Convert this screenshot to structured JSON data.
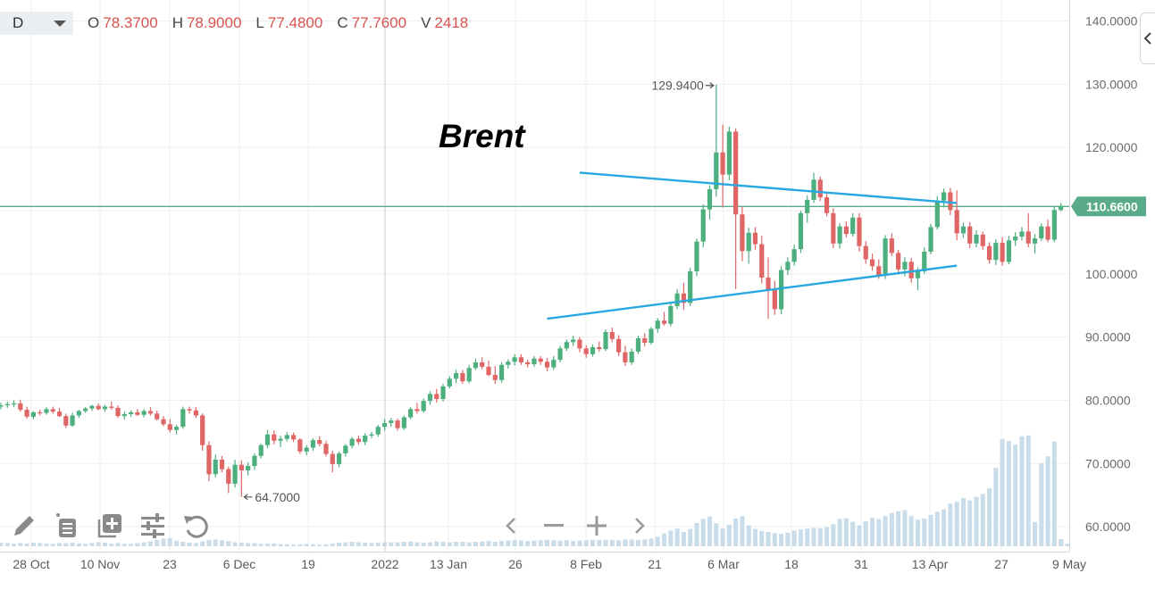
{
  "header": {
    "timeframe": "D",
    "ohlc": {
      "o_label": "O",
      "o": "78.3700",
      "h_label": "H",
      "h": "78.9000",
      "l_label": "L",
      "l": "77.4800",
      "c_label": "C",
      "c": "77.7600",
      "v_label": "V",
      "v": "2418"
    }
  },
  "colors": {
    "up": "#4caf7d",
    "down": "#e06666",
    "trendline": "#29a8e0",
    "hline": "#5aab8a",
    "price_label_bg": "#5aab8a",
    "volume": "#c9dcea",
    "grid": "#efefef"
  },
  "icons": [
    "pencil-icon",
    "list-icon",
    "add-indicator-icon",
    "settings-sliders-icon",
    "reset-icon",
    "chevron-left-icon",
    "minus-icon",
    "plus-icon",
    "chevron-right-icon",
    "collapse-chevron-icon"
  ],
  "chart_data": {
    "type": "candlestick",
    "title": "Brent",
    "y_ticks": [
      "140.0000",
      "130.0000",
      "120.0000",
      "110.0000",
      "100.0000",
      "90.0000",
      "80.0000",
      "70.0000",
      "60.0000"
    ],
    "ylim": [
      58.6,
      141.2
    ],
    "x_ticks": [
      "28 Oct",
      "10 Nov",
      "23",
      "6 Dec",
      "19",
      "2022",
      "13 Jan",
      "26",
      "8 Feb",
      "21",
      "6 Mar",
      "18",
      "31",
      "13 Apr",
      "27",
      "9 May"
    ],
    "current_price": "110.6600",
    "high_annotation": "129.9400",
    "low_annotation": "64.7000",
    "horizontal_line": 110.66,
    "trendlines": [
      {
        "from": [
          89,
          116.0
        ],
        "to": [
          147,
          111.2
        ]
      },
      {
        "from": [
          84,
          92.9
        ],
        "to": [
          147,
          101.3
        ]
      }
    ],
    "candles": [
      [
        79.0,
        79.6,
        78.6,
        79.2
      ],
      [
        79.2,
        79.8,
        78.8,
        79.4
      ],
      [
        79.4,
        80.0,
        78.9,
        79.5
      ],
      [
        79.5,
        80.1,
        78.2,
        78.5
      ],
      [
        78.5,
        79.0,
        77.1,
        77.4
      ],
      [
        77.4,
        78.3,
        77.0,
        78.1
      ],
      [
        78.1,
        78.5,
        77.6,
        78.0
      ],
      [
        78.0,
        78.9,
        77.7,
        78.6
      ],
      [
        78.6,
        79.0,
        77.9,
        78.2
      ],
      [
        78.2,
        78.8,
        77.3,
        77.5
      ],
      [
        77.5,
        77.9,
        75.6,
        76.0
      ],
      [
        76.0,
        78.0,
        75.8,
        77.6
      ],
      [
        77.6,
        78.5,
        77.2,
        78.3
      ],
      [
        78.3,
        78.9,
        78.0,
        78.7
      ],
      [
        78.7,
        79.3,
        78.3,
        79.1
      ],
      [
        79.1,
        79.5,
        78.4,
        78.6
      ],
      [
        78.6,
        79.3,
        78.2,
        79.0
      ],
      [
        79.0,
        79.8,
        78.5,
        78.8
      ],
      [
        78.8,
        79.2,
        77.2,
        77.5
      ],
      [
        77.5,
        78.2,
        77.0,
        77.8
      ],
      [
        77.8,
        78.4,
        77.4,
        78.1
      ],
      [
        78.1,
        78.6,
        77.5,
        77.7
      ],
      [
        77.7,
        78.6,
        77.3,
        78.3
      ],
      [
        78.3,
        78.9,
        77.6,
        77.9
      ],
      [
        77.9,
        78.4,
        76.8,
        77.0
      ],
      [
        77.0,
        77.5,
        75.9,
        76.2
      ],
      [
        76.2,
        77.0,
        74.9,
        75.3
      ],
      [
        75.3,
        76.1,
        74.6,
        75.8
      ],
      [
        75.8,
        79.0,
        75.5,
        78.6
      ],
      [
        78.6,
        79.0,
        77.9,
        78.4
      ],
      [
        78.4,
        78.9,
        77.2,
        77.6
      ],
      [
        77.6,
        77.9,
        72.0,
        72.9
      ],
      [
        72.9,
        73.5,
        67.2,
        68.3
      ],
      [
        68.3,
        71.4,
        67.8,
        70.6
      ],
      [
        70.6,
        71.2,
        68.6,
        69.1
      ],
      [
        69.1,
        69.5,
        65.3,
        66.8
      ],
      [
        66.8,
        70.6,
        66.2,
        69.8
      ],
      [
        69.8,
        70.5,
        64.7,
        68.9
      ],
      [
        68.9,
        70.2,
        68.1,
        69.6
      ],
      [
        69.6,
        71.6,
        69.0,
        71.2
      ],
      [
        71.2,
        73.1,
        70.8,
        72.9
      ],
      [
        72.9,
        75.3,
        72.4,
        74.6
      ],
      [
        74.6,
        75.2,
        73.0,
        73.6
      ],
      [
        73.6,
        74.4,
        72.6,
        73.9
      ],
      [
        73.9,
        75.0,
        73.5,
        74.5
      ],
      [
        74.5,
        74.9,
        73.4,
        73.8
      ],
      [
        73.8,
        74.0,
        71.5,
        71.9
      ],
      [
        71.9,
        72.9,
        71.3,
        72.5
      ],
      [
        72.5,
        74.0,
        72.0,
        73.7
      ],
      [
        73.7,
        74.3,
        72.7,
        73.1
      ],
      [
        73.1,
        73.6,
        71.1,
        71.5
      ],
      [
        71.5,
        72.0,
        68.6,
        69.9
      ],
      [
        69.9,
        71.9,
        69.4,
        71.6
      ],
      [
        71.6,
        73.1,
        71.1,
        72.8
      ],
      [
        72.8,
        74.2,
        72.4,
        73.9
      ],
      [
        73.9,
        74.4,
        73.0,
        73.4
      ],
      [
        73.4,
        74.8,
        72.9,
        74.4
      ],
      [
        74.4,
        75.0,
        74.0,
        74.6
      ],
      [
        74.6,
        76.1,
        74.2,
        75.8
      ],
      [
        75.8,
        77.0,
        75.2,
        76.4
      ],
      [
        76.4,
        77.2,
        75.8,
        76.8
      ],
      [
        76.8,
        77.1,
        75.2,
        75.6
      ],
      [
        75.6,
        77.6,
        75.3,
        77.3
      ],
      [
        77.3,
        78.9,
        77.0,
        78.6
      ],
      [
        78.6,
        79.6,
        77.9,
        78.3
      ],
      [
        78.3,
        80.3,
        78.0,
        79.9
      ],
      [
        79.9,
        81.4,
        79.3,
        81.0
      ],
      [
        81.0,
        81.8,
        79.6,
        80.2
      ],
      [
        80.2,
        82.6,
        79.8,
        82.2
      ],
      [
        82.2,
        83.8,
        81.9,
        83.4
      ],
      [
        83.4,
        84.8,
        82.7,
        84.3
      ],
      [
        84.3,
        84.8,
        82.6,
        83.0
      ],
      [
        83.0,
        85.6,
        82.7,
        85.1
      ],
      [
        85.1,
        86.6,
        84.8,
        86.0
      ],
      [
        86.0,
        86.8,
        84.9,
        85.3
      ],
      [
        85.3,
        86.3,
        83.8,
        84.0
      ],
      [
        84.0,
        85.4,
        82.6,
        83.2
      ],
      [
        83.2,
        86.0,
        82.8,
        85.6
      ],
      [
        85.6,
        86.5,
        85.0,
        86.1
      ],
      [
        86.1,
        87.3,
        85.5,
        86.8
      ],
      [
        86.8,
        87.3,
        85.6,
        86.0
      ],
      [
        86.0,
        86.4,
        85.2,
        85.7
      ],
      [
        85.7,
        87.0,
        85.3,
        86.6
      ],
      [
        86.6,
        87.0,
        85.6,
        86.1
      ],
      [
        86.1,
        86.7,
        84.6,
        85.2
      ],
      [
        85.2,
        87.0,
        84.8,
        86.4
      ],
      [
        86.4,
        88.6,
        86.0,
        88.2
      ],
      [
        88.2,
        89.6,
        87.8,
        89.2
      ],
      [
        89.2,
        90.2,
        88.6,
        89.6
      ],
      [
        89.6,
        90.0,
        87.6,
        88.2
      ],
      [
        88.2,
        88.7,
        86.7,
        87.3
      ],
      [
        87.3,
        88.8,
        86.9,
        88.4
      ],
      [
        88.4,
        89.3,
        87.7,
        88.1
      ],
      [
        88.1,
        91.2,
        87.8,
        90.8
      ],
      [
        90.8,
        91.5,
        89.2,
        89.7
      ],
      [
        89.7,
        90.3,
        87.0,
        87.6
      ],
      [
        87.6,
        88.6,
        85.4,
        86.0
      ],
      [
        86.0,
        88.2,
        85.6,
        87.7
      ],
      [
        87.7,
        90.2,
        87.3,
        89.8
      ],
      [
        89.8,
        90.6,
        88.5,
        89.1
      ],
      [
        89.1,
        91.6,
        88.8,
        91.3
      ],
      [
        91.3,
        93.0,
        90.7,
        92.6
      ],
      [
        92.6,
        94.0,
        91.8,
        92.1
      ],
      [
        92.1,
        95.3,
        91.7,
        94.9
      ],
      [
        94.9,
        97.6,
        94.4,
        96.9
      ],
      [
        96.9,
        98.6,
        94.3,
        95.4
      ],
      [
        95.4,
        101.0,
        94.9,
        100.4
      ],
      [
        100.4,
        105.6,
        99.6,
        105.1
      ],
      [
        105.1,
        111.0,
        104.2,
        110.2
      ],
      [
        110.2,
        114.0,
        108.6,
        113.4
      ],
      [
        113.4,
        129.94,
        112.2,
        119.2
      ],
      [
        119.2,
        123.6,
        110.5,
        115.7
      ],
      [
        115.7,
        123.3,
        114.8,
        122.5
      ],
      [
        122.5,
        123.0,
        97.6,
        109.4
      ],
      [
        109.4,
        110.6,
        102.0,
        103.6
      ],
      [
        103.6,
        107.3,
        101.6,
        106.5
      ],
      [
        106.5,
        107.4,
        103.8,
        104.7
      ],
      [
        104.7,
        106.0,
        98.5,
        99.4
      ],
      [
        99.4,
        102.6,
        92.9,
        97.5
      ],
      [
        97.5,
        98.9,
        93.5,
        94.4
      ],
      [
        94.4,
        101.2,
        93.6,
        100.6
      ],
      [
        100.6,
        102.6,
        99.8,
        101.9
      ],
      [
        101.9,
        104.6,
        101.3,
        103.9
      ],
      [
        103.9,
        110.0,
        103.3,
        109.6
      ],
      [
        109.6,
        112.4,
        108.1,
        111.7
      ],
      [
        111.7,
        116.0,
        111.2,
        114.9
      ],
      [
        114.9,
        115.4,
        111.5,
        112.1
      ],
      [
        112.1,
        113.0,
        109.1,
        109.6
      ],
      [
        109.6,
        110.4,
        104.1,
        104.8
      ],
      [
        104.8,
        108.0,
        104.0,
        107.5
      ],
      [
        107.5,
        108.3,
        105.8,
        106.3
      ],
      [
        106.3,
        109.6,
        105.9,
        108.9
      ],
      [
        108.9,
        109.6,
        103.5,
        104.4
      ],
      [
        104.4,
        105.2,
        101.6,
        102.3
      ],
      [
        102.3,
        103.2,
        100.5,
        101.2
      ],
      [
        101.2,
        102.3,
        99.2,
        99.7
      ],
      [
        99.7,
        106.1,
        99.2,
        105.6
      ],
      [
        105.6,
        106.4,
        102.8,
        103.3
      ],
      [
        103.3,
        103.8,
        100.2,
        100.7
      ],
      [
        100.7,
        102.6,
        99.6,
        101.9
      ],
      [
        101.9,
        102.5,
        98.6,
        99.3
      ],
      [
        99.3,
        101.0,
        97.4,
        100.4
      ],
      [
        100.4,
        104.2,
        100.0,
        103.5
      ],
      [
        103.5,
        107.9,
        103.1,
        107.4
      ],
      [
        107.4,
        112.3,
        107.0,
        111.6
      ],
      [
        111.6,
        113.5,
        110.5,
        112.9
      ],
      [
        112.9,
        113.6,
        109.3,
        110.1
      ],
      [
        110.1,
        113.2,
        105.3,
        106.4
      ],
      [
        106.4,
        108.1,
        105.7,
        107.5
      ],
      [
        107.5,
        108.2,
        104.1,
        104.8
      ],
      [
        104.8,
        106.9,
        104.2,
        106.2
      ],
      [
        106.2,
        106.7,
        103.8,
        104.4
      ],
      [
        104.4,
        105.0,
        101.6,
        102.2
      ],
      [
        102.2,
        105.5,
        101.4,
        104.9
      ],
      [
        104.9,
        105.8,
        101.3,
        101.9
      ],
      [
        101.9,
        106.0,
        101.5,
        105.3
      ],
      [
        105.3,
        106.6,
        104.4,
        105.9
      ],
      [
        105.9,
        107.4,
        105.3,
        106.7
      ],
      [
        106.7,
        109.6,
        104.2,
        104.8
      ],
      [
        104.8,
        106.3,
        103.2,
        105.6
      ],
      [
        105.6,
        108.0,
        105.2,
        107.5
      ],
      [
        107.5,
        108.6,
        105.0,
        105.4
      ],
      [
        105.4,
        110.6,
        105.0,
        110.1
      ],
      [
        110.1,
        111.2,
        109.9,
        110.7
      ]
    ],
    "volume": [
      0.9,
      0.8,
      0.6,
      0.8,
      0.7,
      0.9,
      0.8,
      0.7,
      0.6,
      0.8,
      0.8,
      0.9,
      0.7,
      0.6,
      0.8,
      1.0,
      0.9,
      0.7,
      0.8,
      0.6,
      0.6,
      0.8,
      1.0,
      1.2,
      1.6,
      1.9,
      2.0,
      1.4,
      1.1,
      0.9,
      0.8,
      1.2,
      1.6,
      1.7,
      1.5,
      1.3,
      1.0,
      0.9,
      0.8,
      0.8,
      0.6,
      0.7,
      0.7,
      0.5,
      0.5,
      0.4,
      0.5,
      0.6,
      0.5,
      0.4,
      0.5,
      0.7,
      0.9,
      1.0,
      1.1,
      1.0,
      0.9,
      0.8,
      0.9,
      1.0,
      1.0,
      1.0,
      1.1,
      1.2,
      1.0,
      0.9,
      1.0,
      1.2,
      1.1,
      1.0,
      1.1,
      1.1,
      1.0,
      1.1,
      1.2,
      1.3,
      1.1,
      1.3,
      1.4,
      1.5,
      1.4,
      1.3,
      1.4,
      1.5,
      1.6,
      1.5,
      1.4,
      1.5,
      1.3,
      1.4,
      1.5,
      1.6,
      1.5,
      1.6,
      1.6,
      1.5,
      1.7,
      1.7,
      1.6,
      1.7,
      1.9,
      2.4,
      3.2,
      3.9,
      4.4,
      3.6,
      4.3,
      5.8,
      6.8,
      7.4,
      5.7,
      4.4,
      5.4,
      6.9,
      7.5,
      5.2,
      4.3,
      3.8,
      3.6,
      3.3,
      3.1,
      3.4,
      3.9,
      4.2,
      4.4,
      4.6,
      4.5,
      4.8,
      5.5,
      6.8,
      7.0,
      6.1,
      5.2,
      6.2,
      7.1,
      6.8,
      7.5,
      8.3,
      8.7,
      9.0,
      7.5,
      6.6,
      6.9,
      7.8,
      8.6,
      9.2,
      10.6,
      11.1,
      12.0,
      11.4,
      12.3,
      13.0,
      14.4,
      19.5,
      26.7,
      26.2,
      25.3,
      27.4,
      27.6,
      6.0,
      20.7,
      22.4,
      26.1,
      1.8,
      0.6
    ]
  }
}
